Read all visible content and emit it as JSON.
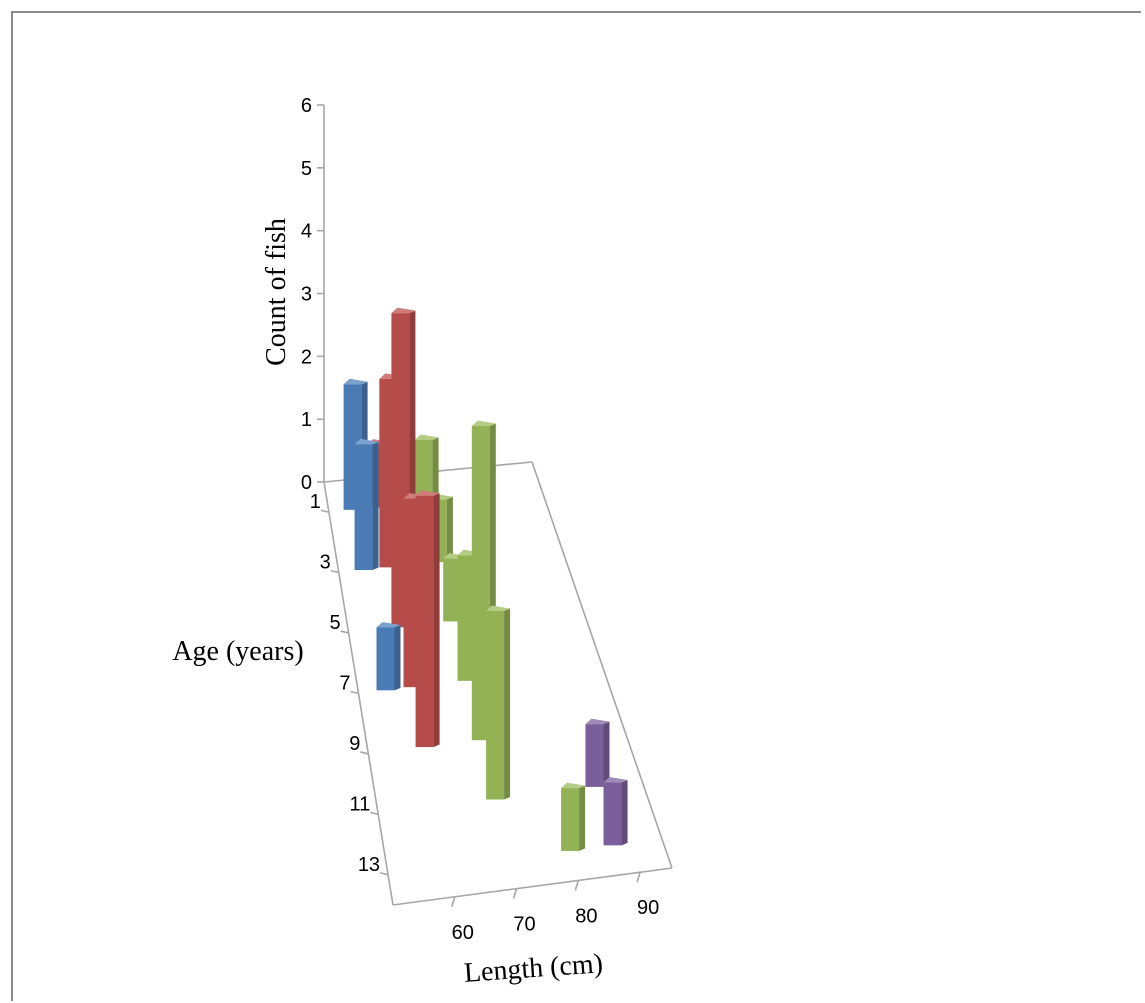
{
  "chart_data": {
    "type": "bar",
    "subtype": "3d-column",
    "title": "",
    "zlabel": "Count of fish",
    "ylabel": "Age (years)",
    "xlabel": "Length (cm)",
    "z_ticks": [
      "0",
      "1",
      "2",
      "3",
      "4",
      "5",
      "6"
    ],
    "z_range": [
      0,
      6
    ],
    "age_ticks": [
      "1",
      "3",
      "5",
      "7",
      "9",
      "11",
      "13"
    ],
    "length_ticks": [
      "60",
      "70",
      "80",
      "90"
    ],
    "grid": false,
    "legend": "none",
    "colors": {
      "blue": "#4f81bd",
      "red": "#c0504d",
      "green": "#9bbb59",
      "purple": "#8064a2"
    },
    "series": [
      {
        "color_key": "blue",
        "points": [
          {
            "age": 1,
            "length": 55,
            "count": 2
          },
          {
            "age": 3,
            "length": 55,
            "count": 2
          },
          {
            "age": 7,
            "length": 55,
            "count": 1
          }
        ]
      },
      {
        "color_key": "red",
        "points": [
          {
            "age": 1,
            "length": 60,
            "count": 1
          },
          {
            "age": 3,
            "length": 60,
            "count": 3
          },
          {
            "age": 5,
            "length": 60,
            "count": 5
          },
          {
            "age": 7,
            "length": 60,
            "count": 3
          },
          {
            "age": 9,
            "length": 60,
            "count": 4
          }
        ]
      },
      {
        "color_key": "green",
        "points": [
          {
            "age": 1,
            "length": 70,
            "count": 1
          },
          {
            "age": 3,
            "length": 70,
            "count": 1
          },
          {
            "age": 5,
            "length": 70,
            "count": 1
          },
          {
            "age": 7,
            "length": 70,
            "count": 2
          },
          {
            "age": 9,
            "length": 70,
            "count": 5
          },
          {
            "age": 11,
            "length": 70,
            "count": 3
          },
          {
            "age": 13,
            "length": 80,
            "count": 1
          }
        ]
      },
      {
        "color_key": "purple",
        "points": [
          {
            "age": 11,
            "length": 87,
            "count": 1
          },
          {
            "age": 13,
            "length": 87,
            "count": 1
          }
        ]
      }
    ]
  }
}
